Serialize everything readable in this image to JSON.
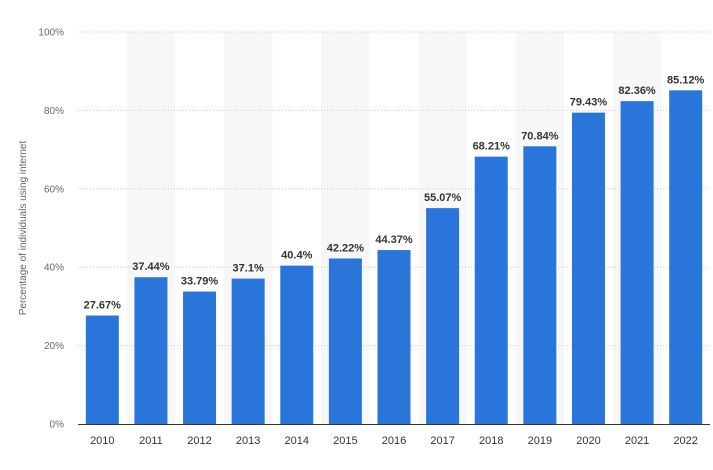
{
  "chart_data": {
    "type": "bar",
    "categories": [
      "2010",
      "2011",
      "2012",
      "2013",
      "2014",
      "2015",
      "2016",
      "2017",
      "2018",
      "2019",
      "2020",
      "2021",
      "2022"
    ],
    "values": [
      27.67,
      37.44,
      33.79,
      37.1,
      40.4,
      42.22,
      44.37,
      55.07,
      68.21,
      70.84,
      79.43,
      82.36,
      85.12
    ],
    "data_labels": [
      "27.67%",
      "37.44%",
      "33.79%",
      "37.1%",
      "40.4%",
      "42.22%",
      "44.37%",
      "55.07%",
      "68.21%",
      "70.84%",
      "79.43%",
      "82.36%",
      "85.12%"
    ],
    "ylabel": "Percentage of individuals using internet",
    "xlabel": "",
    "ylim": [
      0,
      100
    ],
    "y_ticks": [
      0,
      20,
      40,
      60,
      80,
      100
    ],
    "y_tick_labels": [
      "0%",
      "20%",
      "40%",
      "60%",
      "80%",
      "100%"
    ],
    "grid": true,
    "legend": "none",
    "colors": {
      "bar": "#2a75da",
      "band": "#f7f7f7",
      "grid": "#c8c8c8",
      "axis": "#333333"
    }
  }
}
